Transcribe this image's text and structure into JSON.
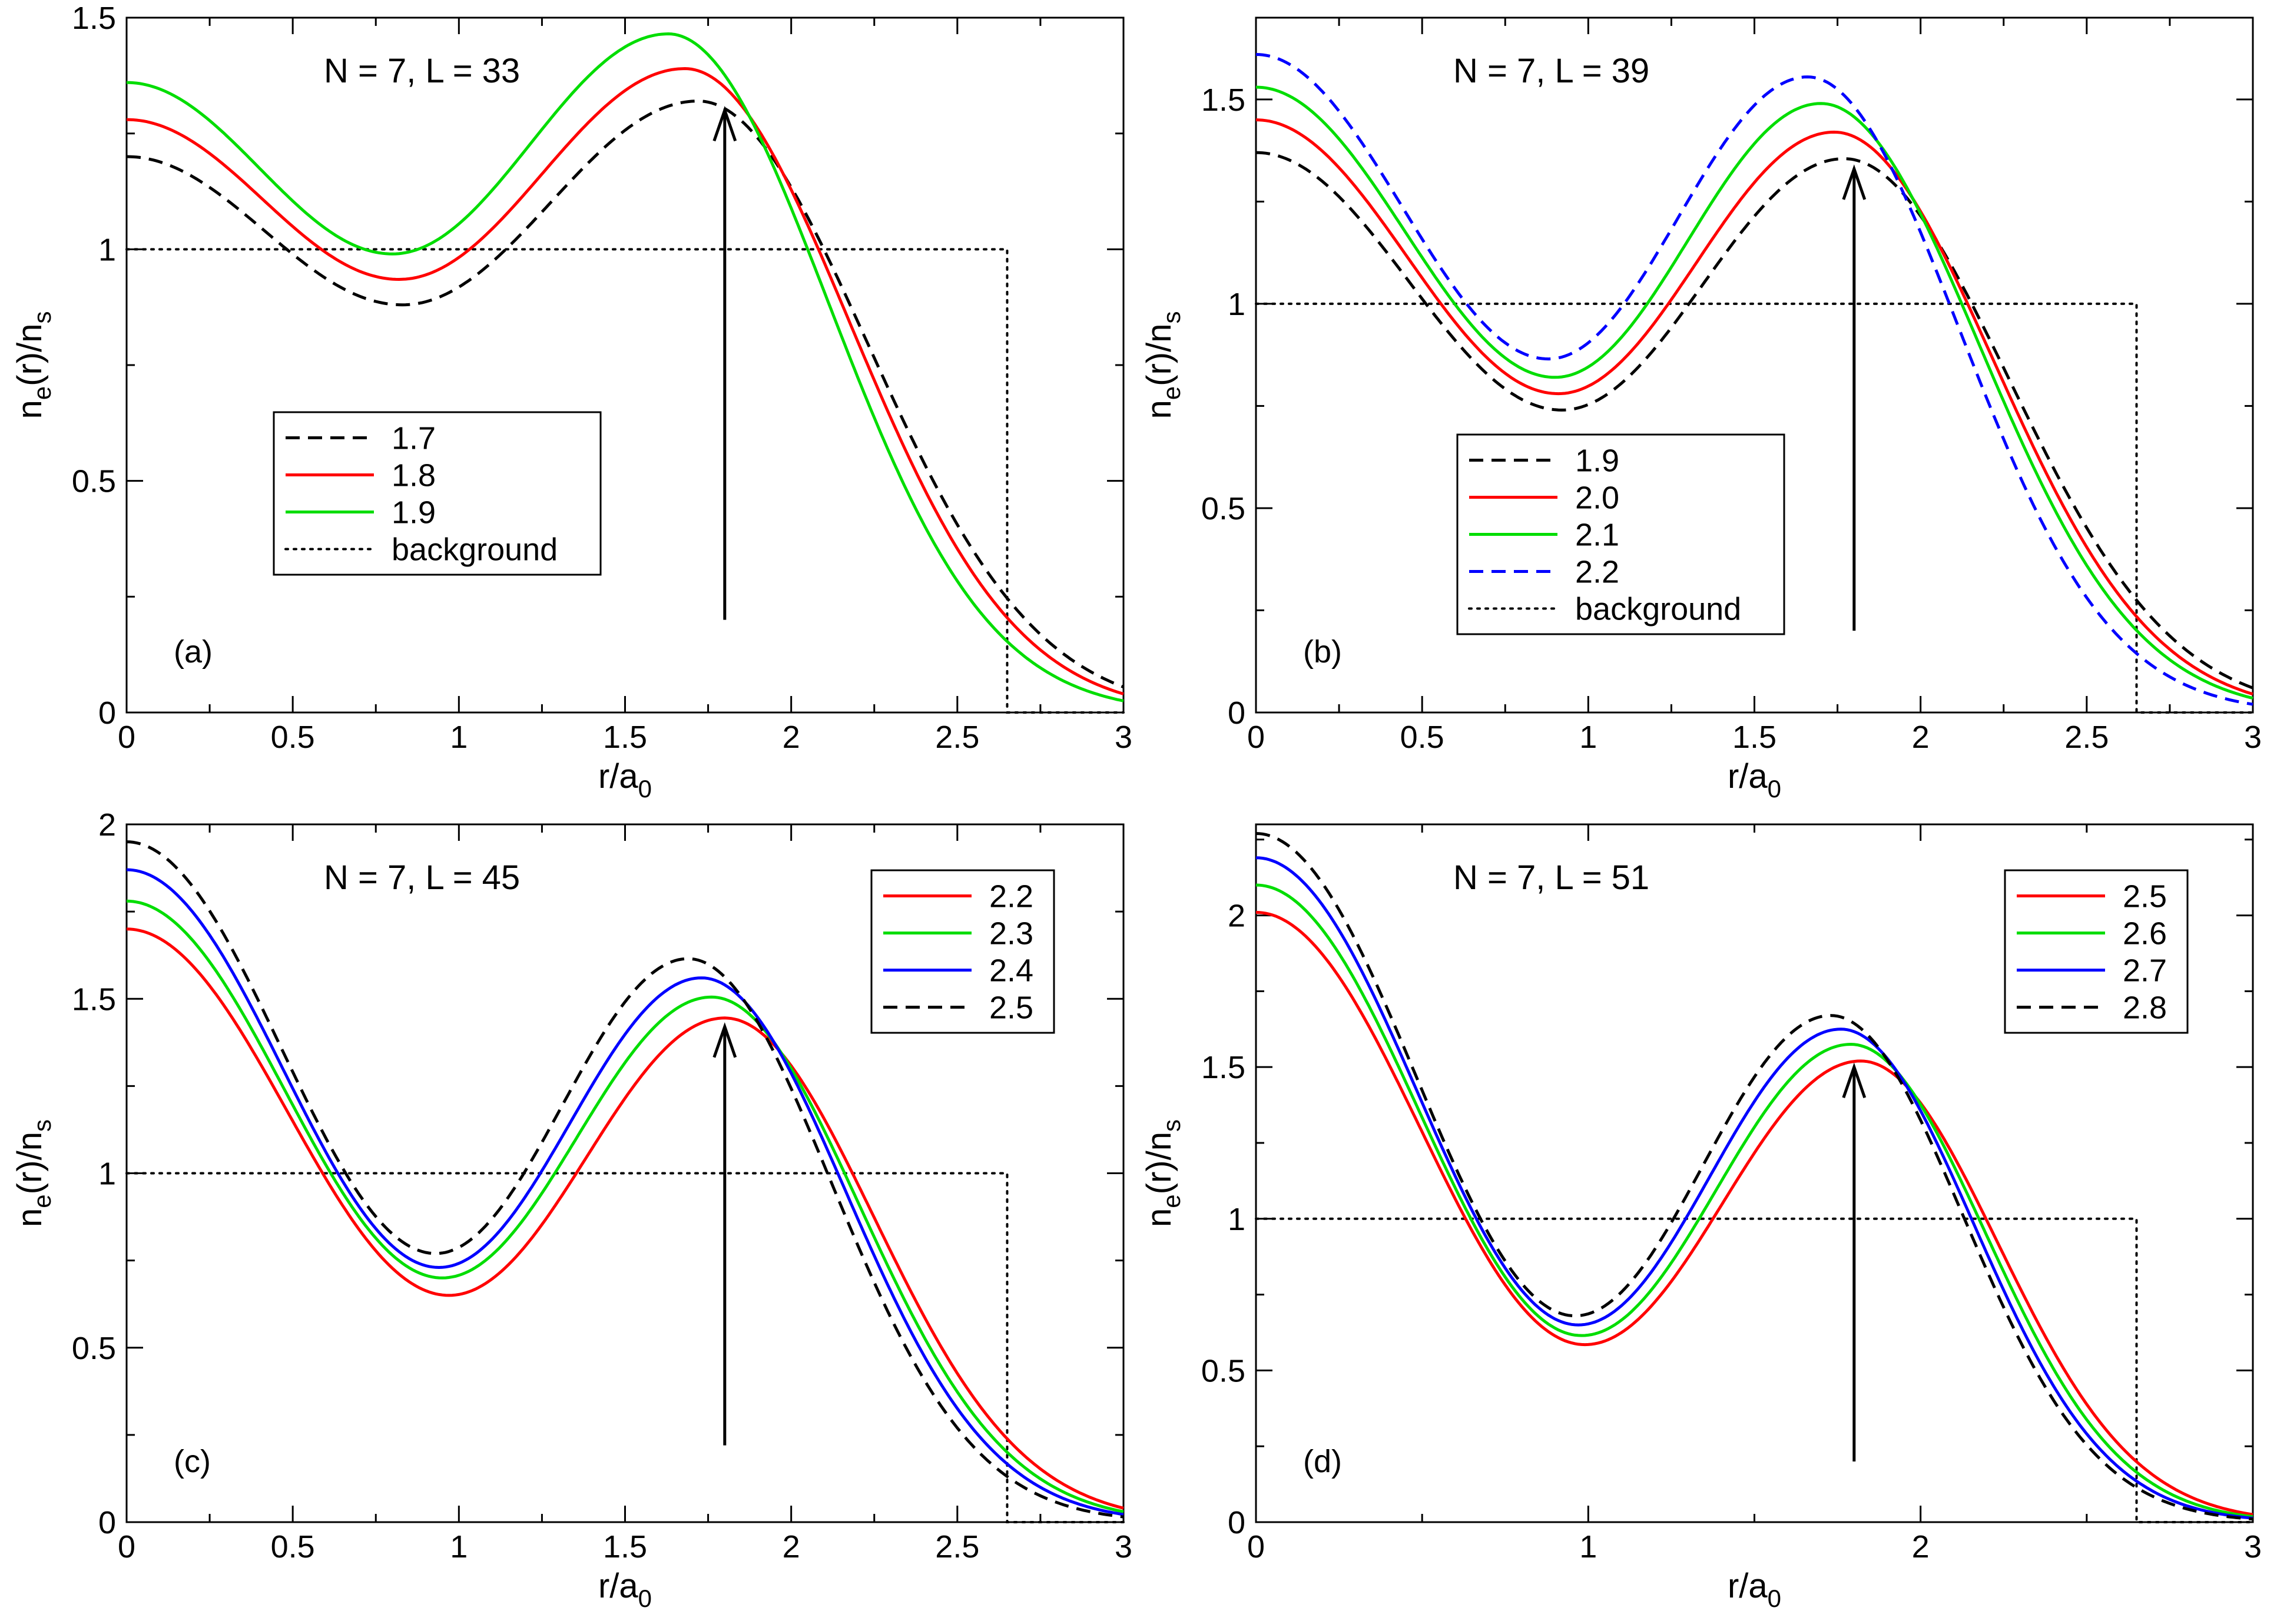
{
  "chart_data": [
    {
      "type": "line",
      "tag": "(a)",
      "title": "N = 7, L = 33",
      "xlabel": {
        "main": "r/a",
        "sub": "0"
      },
      "ylabel": {
        "n": "n",
        "e": "e",
        "mid": "(r)/n",
        "s": "s"
      },
      "xlim": [
        0,
        3
      ],
      "ylim": [
        0,
        1.5
      ],
      "xticks": [
        0,
        0.5,
        1,
        1.5,
        2,
        2.5,
        3
      ],
      "xtick_labels": [
        "0",
        "0.5",
        "1",
        "1.5",
        "2",
        "2.5",
        "3"
      ],
      "yticks": [
        0,
        0.5,
        1,
        1.5
      ],
      "ytick_labels": [
        "0",
        "0.5",
        "1",
        "1.5"
      ],
      "legend_position": "lower-left",
      "arrow": {
        "x": 1.8,
        "y_from": 0.2,
        "y_to": 1.3
      },
      "background": {
        "label": "background",
        "level": 1.0,
        "edge": 2.65
      },
      "series": [
        {
          "name": "1.7",
          "color": "#000000",
          "dash": true,
          "a": 1.2,
          "rmin": 0.83,
          "min": 0.88,
          "rmax": 1.72,
          "max": 1.32,
          "tail": 0.055
        },
        {
          "name": "1.8",
          "color": "#ff0000",
          "dash": false,
          "a": 1.28,
          "rmin": 0.82,
          "min": 0.935,
          "rmax": 1.68,
          "max": 1.39,
          "tail": 0.04
        },
        {
          "name": "1.9",
          "color": "#00dd00",
          "dash": false,
          "a": 1.36,
          "rmin": 0.8,
          "min": 0.99,
          "rmax": 1.63,
          "max": 1.465,
          "tail": 0.025
        }
      ]
    },
    {
      "type": "line",
      "tag": "(b)",
      "title": "N = 7, L = 39",
      "xlabel": {
        "main": "r/a",
        "sub": "0"
      },
      "ylabel": {
        "n": "n",
        "e": "e",
        "mid": "(r)/n",
        "s": "s"
      },
      "xlim": [
        0,
        3
      ],
      "ylim": [
        0,
        1.7
      ],
      "xticks": [
        0,
        0.5,
        1,
        1.5,
        2,
        2.5,
        3
      ],
      "xtick_labels": [
        "0",
        "0.5",
        "1",
        "1.5",
        "2",
        "2.5",
        "3"
      ],
      "yticks": [
        0,
        0.5,
        1,
        1.5
      ],
      "ytick_labels": [
        "0",
        "0.5",
        "1",
        "1.5"
      ],
      "legend_position": "lower-left",
      "arrow": {
        "x": 1.8,
        "y_from": 0.2,
        "y_to": 1.33
      },
      "background": {
        "label": "background",
        "level": 1.0,
        "edge": 2.65
      },
      "series": [
        {
          "name": "1.9",
          "color": "#000000",
          "dash": true,
          "a": 1.37,
          "rmin": 0.92,
          "min": 0.74,
          "rmax": 1.77,
          "max": 1.355,
          "tail": 0.06
        },
        {
          "name": "2.0",
          "color": "#ff0000",
          "dash": false,
          "a": 1.45,
          "rmin": 0.91,
          "min": 0.78,
          "rmax": 1.74,
          "max": 1.42,
          "tail": 0.045
        },
        {
          "name": "2.1",
          "color": "#00dd00",
          "dash": false,
          "a": 1.53,
          "rmin": 0.9,
          "min": 0.82,
          "rmax": 1.7,
          "max": 1.49,
          "tail": 0.035
        },
        {
          "name": "2.2",
          "color": "#0000ff",
          "dash": true,
          "a": 1.61,
          "rmin": 0.88,
          "min": 0.865,
          "rmax": 1.66,
          "max": 1.555,
          "tail": 0.02
        }
      ]
    },
    {
      "type": "line",
      "tag": "(c)",
      "title": "N = 7, L = 45",
      "xlabel": {
        "main": "r/a",
        "sub": "0"
      },
      "ylabel": {
        "n": "n",
        "e": "e",
        "mid": "(r)/n",
        "s": "s"
      },
      "xlim": [
        0,
        3
      ],
      "ylim": [
        0,
        2
      ],
      "xticks": [
        0,
        0.5,
        1,
        1.5,
        2,
        2.5,
        3
      ],
      "xtick_labels": [
        "0",
        "0.5",
        "1",
        "1.5",
        "2",
        "2.5",
        "3"
      ],
      "yticks": [
        0,
        0.5,
        1,
        1.5,
        2
      ],
      "ytick_labels": [
        "0",
        "0.5",
        "1",
        "1.5",
        "2"
      ],
      "legend_position": "top-right",
      "arrow": {
        "x": 1.8,
        "y_from": 0.22,
        "y_to": 1.42
      },
      "background": {
        "label": "",
        "level": 1.0,
        "edge": 2.65
      },
      "series": [
        {
          "name": "2.2",
          "color": "#ff0000",
          "dash": false,
          "a": 1.7,
          "rmin": 0.97,
          "min": 0.65,
          "rmax": 1.8,
          "max": 1.445,
          "tail": 0.04
        },
        {
          "name": "2.3",
          "color": "#00dd00",
          "dash": false,
          "a": 1.78,
          "rmin": 0.95,
          "min": 0.7,
          "rmax": 1.76,
          "max": 1.505,
          "tail": 0.03
        },
        {
          "name": "2.4",
          "color": "#0000ff",
          "dash": false,
          "a": 1.87,
          "rmin": 0.94,
          "min": 0.73,
          "rmax": 1.73,
          "max": 1.56,
          "tail": 0.022
        },
        {
          "name": "2.5",
          "color": "#000000",
          "dash": true,
          "a": 1.95,
          "rmin": 0.93,
          "min": 0.77,
          "rmax": 1.69,
          "max": 1.615,
          "tail": 0.015
        }
      ]
    },
    {
      "type": "line",
      "tag": "(d)",
      "title": "N = 7, L = 51",
      "xlabel": {
        "main": "r/a",
        "sub": "0"
      },
      "ylabel": {
        "n": "n",
        "e": "e",
        "mid": "(r)/n",
        "s": "s"
      },
      "xlim": [
        0,
        3
      ],
      "ylim": [
        0,
        2.3
      ],
      "xticks": [
        0,
        1,
        2,
        3
      ],
      "xtick_labels": [
        "0",
        "1",
        "2",
        "3"
      ],
      "yticks": [
        0,
        0.5,
        1,
        1.5,
        2
      ],
      "ytick_labels": [
        "0",
        "0.5",
        "1",
        "1.5",
        "2"
      ],
      "legend_position": "top-right",
      "arrow": {
        "x": 1.8,
        "y_from": 0.2,
        "y_to": 1.5
      },
      "background": {
        "label": "",
        "level": 1.0,
        "edge": 2.65
      },
      "series": [
        {
          "name": "2.5",
          "color": "#ff0000",
          "dash": false,
          "a": 2.01,
          "rmin": 0.99,
          "min": 0.585,
          "rmax": 1.82,
          "max": 1.52,
          "tail": 0.025
        },
        {
          "name": "2.6",
          "color": "#00dd00",
          "dash": false,
          "a": 2.1,
          "rmin": 0.98,
          "min": 0.615,
          "rmax": 1.79,
          "max": 1.575,
          "tail": 0.018
        },
        {
          "name": "2.7",
          "color": "#0000ff",
          "dash": false,
          "a": 2.19,
          "rmin": 0.97,
          "min": 0.65,
          "rmax": 1.76,
          "max": 1.625,
          "tail": 0.013
        },
        {
          "name": "2.8",
          "color": "#000000",
          "dash": true,
          "a": 2.27,
          "rmin": 0.96,
          "min": 0.68,
          "rmax": 1.73,
          "max": 1.67,
          "tail": 0.01
        }
      ]
    }
  ]
}
